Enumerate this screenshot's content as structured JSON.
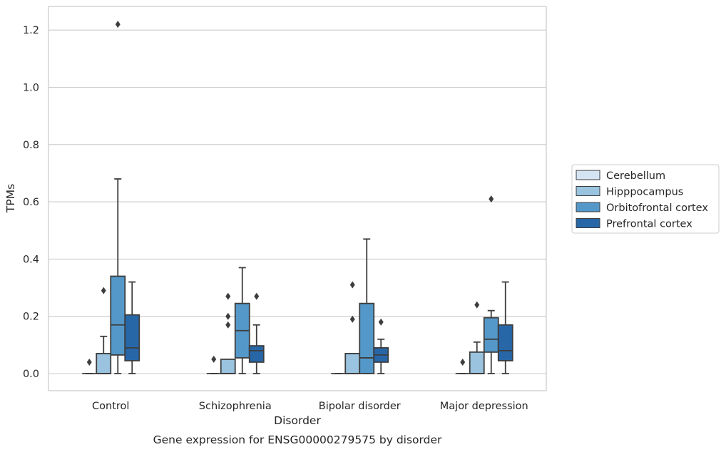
{
  "chart_data": {
    "type": "box",
    "title": "",
    "caption": "Gene expression for ENSG00000279575 by disorder",
    "xlabel": "Disorder",
    "ylabel": "TPMs",
    "ylim": [
      -0.06,
      1.28
    ],
    "yticks": [
      0.0,
      0.2,
      0.4,
      0.6,
      0.8,
      1.0,
      1.2
    ],
    "ytick_labels": [
      "0.0",
      "0.2",
      "0.4",
      "0.6",
      "0.8",
      "1.0",
      "1.2"
    ],
    "grid": "horizontal",
    "legend_position": "right",
    "categories": [
      "Control",
      "Schizophrenia",
      "Bipolar disorder",
      "Major depression"
    ],
    "series": [
      {
        "name": "Cerebellum",
        "color": "#d4e4f2",
        "boxes": [
          {
            "q1": 0.0,
            "median": 0.0,
            "q3": 0.0,
            "whisker_low": 0.0,
            "whisker_high": 0.0,
            "outliers": [
              0.04
            ]
          },
          {
            "q1": 0.0,
            "median": 0.0,
            "q3": 0.0,
            "whisker_low": 0.0,
            "whisker_high": 0.0,
            "outliers": [
              0.05
            ]
          },
          {
            "q1": 0.0,
            "median": 0.0,
            "q3": 0.0,
            "whisker_low": 0.0,
            "whisker_high": 0.0,
            "outliers": []
          },
          {
            "q1": 0.0,
            "median": 0.0,
            "q3": 0.0,
            "whisker_low": 0.0,
            "whisker_high": 0.0,
            "outliers": [
              0.04
            ]
          }
        ]
      },
      {
        "name": "Hipppocampus",
        "color": "#9ac3df",
        "boxes": [
          {
            "q1": 0.0,
            "median": 0.0,
            "q3": 0.07,
            "whisker_low": 0.0,
            "whisker_high": 0.13,
            "outliers": [
              0.29
            ]
          },
          {
            "q1": 0.0,
            "median": 0.0,
            "q3": 0.05,
            "whisker_low": 0.0,
            "whisker_high": 0.05,
            "outliers": [
              0.17,
              0.2,
              0.27
            ]
          },
          {
            "q1": 0.0,
            "median": 0.0,
            "q3": 0.07,
            "whisker_low": 0.0,
            "whisker_high": 0.07,
            "outliers": [
              0.19,
              0.31
            ]
          },
          {
            "q1": 0.0,
            "median": 0.0,
            "q3": 0.075,
            "whisker_low": 0.0,
            "whisker_high": 0.11,
            "outliers": [
              0.24
            ]
          }
        ]
      },
      {
        "name": "Orbitofrontal cortex",
        "color": "#5498c9",
        "boxes": [
          {
            "q1": 0.065,
            "median": 0.17,
            "q3": 0.34,
            "whisker_low": 0.0,
            "whisker_high": 0.68,
            "outliers": [
              1.22
            ]
          },
          {
            "q1": 0.055,
            "median": 0.15,
            "q3": 0.245,
            "whisker_low": 0.0,
            "whisker_high": 0.37,
            "outliers": []
          },
          {
            "q1": 0.0,
            "median": 0.055,
            "q3": 0.245,
            "whisker_low": 0.0,
            "whisker_high": 0.47,
            "outliers": []
          },
          {
            "q1": 0.075,
            "median": 0.12,
            "q3": 0.195,
            "whisker_low": 0.0,
            "whisker_high": 0.22,
            "outliers": [
              0.61
            ]
          }
        ]
      },
      {
        "name": "Prefrontal cortex",
        "color": "#2767a8",
        "boxes": [
          {
            "q1": 0.045,
            "median": 0.09,
            "q3": 0.205,
            "whisker_low": 0.0,
            "whisker_high": 0.32,
            "outliers": []
          },
          {
            "q1": 0.04,
            "median": 0.08,
            "q3": 0.097,
            "whisker_low": 0.0,
            "whisker_high": 0.17,
            "outliers": [
              0.27
            ]
          },
          {
            "q1": 0.04,
            "median": 0.065,
            "q3": 0.09,
            "whisker_low": 0.0,
            "whisker_high": 0.12,
            "outliers": [
              0.18
            ]
          },
          {
            "q1": 0.045,
            "median": 0.08,
            "q3": 0.17,
            "whisker_low": 0.0,
            "whisker_high": 0.32,
            "outliers": []
          }
        ]
      }
    ]
  }
}
